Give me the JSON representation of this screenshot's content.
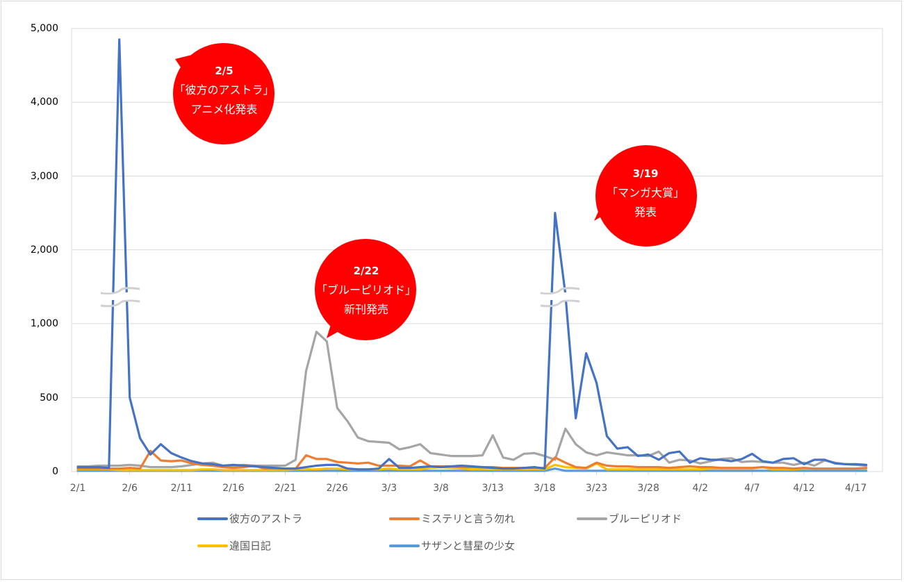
{
  "chart_data": {
    "type": "line",
    "title": "",
    "xlabel": "",
    "ylabel": "",
    "ylim": [
      0,
      5000
    ],
    "y_axis_note": "broken axis: 0-1000 in 500 steps, 1000-5000 compressed in 1000 steps",
    "y_ticks": [
      "0",
      "500",
      "1,000",
      "2,000",
      "3,000",
      "4,000",
      "5,000"
    ],
    "x_ticks": [
      "2/1",
      "2/6",
      "2/11",
      "2/16",
      "2/21",
      "2/26",
      "3/3",
      "3/8",
      "3/13",
      "3/18",
      "3/23",
      "3/28",
      "4/2",
      "4/7",
      "4/12",
      "4/17"
    ],
    "grid": true,
    "legend_position": "bottom",
    "x_start": "2/1",
    "x_count": 77,
    "series": [
      {
        "name": "彼方のアストラ",
        "color": "#4472C4",
        "values": [
          30,
          30,
          30,
          25,
          4850,
          500,
          225,
          115,
          185,
          125,
          95,
          70,
          55,
          50,
          40,
          45,
          40,
          35,
          30,
          25,
          20,
          20,
          30,
          40,
          45,
          45,
          20,
          15,
          15,
          20,
          85,
          25,
          25,
          30,
          35,
          30,
          35,
          40,
          35,
          30,
          25,
          20,
          20,
          25,
          30,
          20,
          2500,
          1400,
          360,
          800,
          600,
          240,
          155,
          165,
          105,
          115,
          80,
          125,
          135,
          60,
          90,
          80,
          80,
          70,
          85,
          120,
          70,
          60,
          85,
          90,
          50,
          80,
          80,
          55,
          50,
          50,
          45
        ]
      },
      {
        "name": "ミステリと言う勿れ",
        "color": "#ED7D31",
        "values": [
          20,
          20,
          20,
          20,
          20,
          25,
          20,
          140,
          75,
          70,
          75,
          55,
          45,
          40,
          30,
          25,
          30,
          40,
          20,
          20,
          20,
          20,
          110,
          85,
          85,
          65,
          60,
          55,
          60,
          40,
          40,
          40,
          35,
          75,
          35,
          35,
          35,
          30,
          30,
          30,
          30,
          25,
          25,
          25,
          25,
          25,
          95,
          60,
          30,
          25,
          60,
          40,
          35,
          35,
          30,
          30,
          30,
          25,
          30,
          35,
          30,
          30,
          25,
          25,
          25,
          25,
          30,
          25,
          25,
          20,
          25,
          20,
          20,
          20,
          20,
          20,
          25
        ]
      },
      {
        "name": "ブルーピリオド",
        "color": "#A5A5A5",
        "values": [
          35,
          35,
          40,
          40,
          40,
          45,
          40,
          30,
          30,
          30,
          35,
          45,
          55,
          60,
          40,
          40,
          45,
          40,
          40,
          40,
          40,
          80,
          680,
          945,
          880,
          430,
          340,
          230,
          205,
          200,
          195,
          150,
          165,
          185,
          125,
          115,
          105,
          105,
          105,
          110,
          245,
          95,
          80,
          120,
          125,
          105,
          80,
          290,
          185,
          130,
          110,
          130,
          120,
          110,
          110,
          105,
          135,
          60,
          80,
          75,
          55,
          70,
          85,
          90,
          65,
          70,
          65,
          60,
          60,
          45,
          60,
          40,
          75,
          60,
          50,
          45,
          40
        ]
      },
      {
        "name": "違国日記",
        "color": "#FFC000",
        "values": [
          15,
          15,
          15,
          15,
          10,
          10,
          10,
          10,
          10,
          10,
          10,
          10,
          15,
          15,
          10,
          10,
          10,
          10,
          10,
          10,
          10,
          15,
          15,
          15,
          20,
          20,
          15,
          15,
          15,
          15,
          20,
          15,
          15,
          15,
          25,
          30,
          25,
          20,
          15,
          15,
          15,
          15,
          15,
          15,
          15,
          15,
          45,
          30,
          25,
          20,
          55,
          15,
          15,
          15,
          15,
          15,
          15,
          15,
          15,
          15,
          15,
          20,
          20,
          20,
          20,
          20,
          30,
          15,
          15,
          15,
          20,
          20,
          20,
          20,
          20,
          20,
          20
        ]
      },
      {
        "name": "サザンと彗星の少女",
        "color": "#5B9BD5",
        "values": [
          5,
          5,
          5,
          5,
          5,
          5,
          5,
          5,
          5,
          5,
          5,
          5,
          5,
          5,
          5,
          5,
          5,
          5,
          5,
          5,
          5,
          5,
          5,
          5,
          5,
          5,
          5,
          5,
          5,
          5,
          5,
          5,
          5,
          5,
          5,
          5,
          5,
          5,
          5,
          5,
          5,
          5,
          5,
          5,
          5,
          5,
          20,
          5,
          5,
          5,
          5,
          5,
          5,
          5,
          5,
          5,
          5,
          5,
          5,
          5,
          5,
          5,
          5,
          5,
          5,
          5,
          5,
          5,
          5,
          5,
          5,
          5,
          5,
          5,
          5,
          5,
          5
        ]
      }
    ],
    "annotations": [
      {
        "date": "2/5",
        "line1": "「彼方のアストラ」",
        "line2": "アニメ化発表"
      },
      {
        "date": "2/22",
        "line1": "「ブルーピリオド」",
        "line2": "新刊発売"
      },
      {
        "date": "3/19",
        "line1": "「マンガ大賞」",
        "line2": "発表"
      }
    ]
  },
  "axis": {
    "y": [
      "5,000",
      "4,000",
      "3,000",
      "2,000",
      "1,000",
      "500",
      "0"
    ],
    "x": [
      "2/1",
      "2/6",
      "2/11",
      "2/16",
      "2/21",
      "2/26",
      "3/3",
      "3/8",
      "3/13",
      "3/18",
      "3/23",
      "3/28",
      "4/2",
      "4/7",
      "4/12",
      "4/17"
    ]
  },
  "legend": [
    {
      "label": "彼方のアストラ",
      "color": "#4472C4"
    },
    {
      "label": "ミステリと言う勿れ",
      "color": "#ED7D31"
    },
    {
      "label": "ブルーピリオド",
      "color": "#A5A5A5"
    },
    {
      "label": "違国日記",
      "color": "#FFC000"
    },
    {
      "label": "サザンと彗星の少女",
      "color": "#5B9BD5"
    }
  ],
  "callouts": [
    {
      "date": "2/5",
      "line1": "「彼方のアストラ」",
      "line2": "アニメ化発表"
    },
    {
      "date": "2/22",
      "line1": "「ブルーピリオド」",
      "line2": "新刊発売"
    },
    {
      "date": "3/19",
      "line1": "「マンガ大賞」",
      "line2": "発表"
    }
  ],
  "colors": {
    "callout": "#FF0000",
    "grid": "#D9D9D9"
  }
}
